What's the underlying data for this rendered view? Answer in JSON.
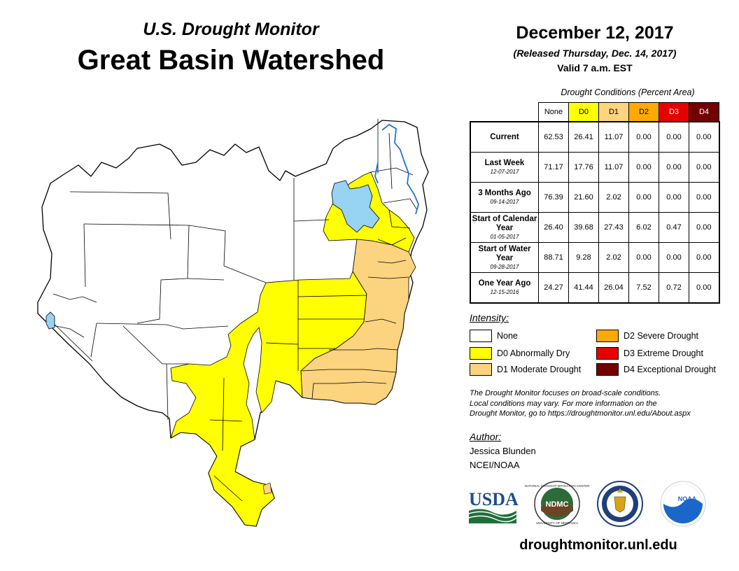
{
  "header": {
    "subtitle": "U.S. Drought Monitor",
    "title": "Great Basin Watershed",
    "date": "December 12, 2017",
    "released": "(Released Thursday, Dec. 14, 2017)",
    "valid": "Valid 7 a.m. EST"
  },
  "conditions": {
    "caption": "Drought Conditions (Percent Area)",
    "columns": [
      "None",
      "D0",
      "D1",
      "D2",
      "D3",
      "D4"
    ],
    "column_colors": [
      "#ffffff",
      "#ffff00",
      "#fcd37f",
      "#ffaa00",
      "#e60000",
      "#730000"
    ],
    "rows": [
      {
        "label": "Current",
        "date": "",
        "values": [
          "62.53",
          "26.41",
          "11.07",
          "0.00",
          "0.00",
          "0.00"
        ]
      },
      {
        "label": "Last Week",
        "date": "12-07-2017",
        "values": [
          "71.17",
          "17.76",
          "11.07",
          "0.00",
          "0.00",
          "0.00"
        ]
      },
      {
        "label": "3 Months Ago",
        "date": "09-14-2017",
        "values": [
          "76.39",
          "21.60",
          "2.02",
          "0.00",
          "0.00",
          "0.00"
        ]
      },
      {
        "label": "Start of Calendar Year",
        "date": "01-05-2017",
        "values": [
          "26.40",
          "39.68",
          "27.43",
          "6.02",
          "0.47",
          "0.00"
        ]
      },
      {
        "label": "Start of Water Year",
        "date": "09-28-2017",
        "values": [
          "88.71",
          "9.28",
          "2.02",
          "0.00",
          "0.00",
          "0.00"
        ]
      },
      {
        "label": "One Year Ago",
        "date": "12-15-2016",
        "values": [
          "24.27",
          "41.44",
          "26.04",
          "7.52",
          "0.72",
          "0.00"
        ]
      }
    ]
  },
  "legend": {
    "title": "Intensity:",
    "items": [
      {
        "label": "None",
        "color": "#ffffff"
      },
      {
        "label": "D0 Abnormally Dry",
        "color": "#ffff00"
      },
      {
        "label": "D1 Moderate Drought",
        "color": "#fcd37f"
      },
      {
        "label": "D2 Severe Drought",
        "color": "#ffaa00"
      },
      {
        "label": "D3 Extreme Drought",
        "color": "#e60000"
      },
      {
        "label": "D4 Exceptional Drought",
        "color": "#730000"
      }
    ]
  },
  "note": {
    "line1": "The Drought Monitor focuses on broad-scale conditions.",
    "line2": "Local conditions may vary. For more information on the",
    "line3": "Drought Monitor, go to https://droughtmonitor.unl.edu/About.aspx"
  },
  "author": {
    "label": "Author:",
    "name": "Jessica Blunden",
    "org": "NCEI/NOAA"
  },
  "logos": {
    "usda": "USDA",
    "ndmc": "NDMC",
    "noaa": "NOAA",
    "ndmc_ring_text": "NATIONAL DROUGHT MITIGATION CENTER",
    "ndmc_ring_text_bottom": "UNIVERSITY OF NEBRASKA"
  },
  "map_colors": {
    "water": "#97d3f2",
    "d0": "#ffff00",
    "d1": "#fcd37f"
  },
  "website": "droughtmonitor.unl.edu"
}
